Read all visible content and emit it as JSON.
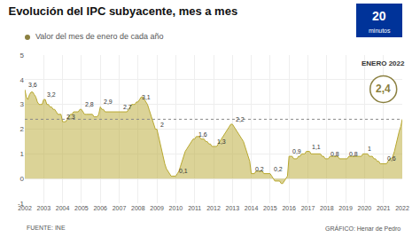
{
  "chart_data": {
    "type": "area",
    "title": "Evolución del IPC subyacente, mes a mes",
    "subtitle": "Valor del mes de enero de cada año",
    "source": "FUENTE: INE",
    "credit": "GRÁFICO: Henar de Pedro",
    "logo": [
      "20",
      "minutos"
    ],
    "color": "#b8a830",
    "categories": [
      "2002",
      null,
      null,
      null,
      null,
      null,
      null,
      null,
      null,
      null,
      null,
      null,
      "2003",
      null,
      null,
      null,
      null,
      null,
      null,
      null,
      null,
      null,
      null,
      null,
      "2004",
      null,
      null,
      null,
      null,
      null,
      null,
      null,
      null,
      null,
      null,
      null,
      "2005",
      null,
      null,
      null,
      null,
      null,
      null,
      null,
      null,
      null,
      null,
      null,
      "2006",
      null,
      null,
      null,
      null,
      null,
      null,
      null,
      null,
      null,
      null,
      null,
      "2007",
      null,
      null,
      null,
      null,
      null,
      null,
      null,
      null,
      null,
      null,
      null,
      "2008",
      null,
      null,
      null,
      null,
      null,
      null,
      null,
      null,
      null,
      null,
      null,
      "2009",
      null,
      null,
      null,
      null,
      null,
      null,
      null,
      null,
      null,
      null,
      null,
      "2010",
      null,
      null,
      null,
      null,
      null,
      null,
      null,
      null,
      null,
      null,
      null,
      "2011",
      null,
      null,
      null,
      null,
      null,
      null,
      null,
      null,
      null,
      null,
      null,
      "2012",
      null,
      null,
      null,
      null,
      null,
      null,
      null,
      null,
      null,
      null,
      null,
      "2013",
      null,
      null,
      null,
      null,
      null,
      null,
      null,
      null,
      null,
      null,
      null,
      "2014",
      null,
      null,
      null,
      null,
      null,
      null,
      null,
      null,
      null,
      null,
      null,
      "2015",
      null,
      null,
      null,
      null,
      null,
      null,
      null,
      null,
      null,
      null,
      null,
      "2016",
      null,
      null,
      null,
      null,
      null,
      null,
      null,
      null,
      null,
      null,
      null,
      "2017",
      null,
      null,
      null,
      null,
      null,
      null,
      null,
      null,
      null,
      null,
      null,
      "2018",
      null,
      null,
      null,
      null,
      null,
      null,
      null,
      null,
      null,
      null,
      null,
      "2019",
      null,
      null,
      null,
      null,
      null,
      null,
      null,
      null,
      null,
      null,
      null,
      "2020",
      null,
      null,
      null,
      null,
      null,
      null,
      null,
      null,
      null,
      null,
      null,
      "2021",
      null,
      null,
      null,
      null,
      null,
      null,
      null,
      null,
      null,
      null,
      null,
      "2022"
    ],
    "values": [
      3.6,
      3.3,
      3.2,
      3.4,
      3.5,
      3.5,
      3.4,
      3.3,
      3.1,
      3.0,
      3.0,
      3.0,
      3.2,
      3.2,
      3.0,
      3.0,
      2.9,
      2.9,
      2.8,
      2.8,
      2.7,
      2.6,
      2.6,
      2.6,
      2.3,
      2.3,
      2.3,
      2.4,
      2.5,
      2.6,
      2.6,
      2.7,
      2.7,
      2.7,
      2.7,
      2.8,
      2.8,
      2.7,
      2.6,
      2.6,
      2.6,
      2.6,
      2.6,
      2.6,
      2.5,
      2.5,
      2.5,
      2.6,
      2.9,
      2.8,
      2.8,
      2.7,
      2.7,
      2.7,
      2.7,
      2.7,
      2.7,
      2.7,
      2.7,
      2.7,
      2.7,
      2.7,
      2.7,
      2.7,
      2.7,
      2.7,
      2.8,
      2.9,
      3.0,
      3.0,
      3.0,
      3.1,
      3.1,
      3.2,
      3.3,
      3.3,
      3.2,
      3.1,
      3.0,
      2.8,
      2.6,
      2.4,
      2.2,
      2.0,
      2.0,
      1.7,
      1.4,
      1.1,
      0.8,
      0.6,
      0.4,
      0.3,
      0.2,
      0.1,
      0.1,
      0.1,
      0.1,
      0.2,
      0.3,
      0.5,
      0.7,
      0.9,
      1.1,
      1.2,
      1.3,
      1.4,
      1.5,
      1.6,
      1.6,
      1.7,
      1.7,
      1.7,
      1.6,
      1.6,
      1.6,
      1.5,
      1.5,
      1.4,
      1.4,
      1.3,
      1.3,
      1.3,
      1.3,
      1.4,
      1.5,
      1.6,
      1.7,
      1.8,
      1.9,
      2.0,
      2.1,
      2.2,
      2.2,
      2.1,
      2.0,
      1.9,
      1.8,
      1.7,
      1.6,
      1.5,
      1.3,
      1.1,
      0.9,
      0.7,
      0.2,
      0.2,
      0.2,
      0.3,
      0.3,
      0.3,
      0.3,
      0.3,
      0.2,
      0.2,
      0.2,
      0.2,
      0.2,
      0.1,
      0.0,
      -0.1,
      -0.1,
      -0.1,
      -0.1,
      -0.2,
      -0.2,
      -0.1,
      0.0,
      0.1,
      0.9,
      0.9,
      0.9,
      0.8,
      0.8,
      0.8,
      0.9,
      0.9,
      1.0,
      1.0,
      1.0,
      1.1,
      1.1,
      1.1,
      1.0,
      1.0,
      1.0,
      1.0,
      1.0,
      1.0,
      1.0,
      0.9,
      0.9,
      0.8,
      0.8,
      0.8,
      0.9,
      0.9,
      0.9,
      0.9,
      0.9,
      0.9,
      0.8,
      0.8,
      0.8,
      0.8,
      0.8,
      0.8,
      0.9,
      0.9,
      0.9,
      0.9,
      0.9,
      0.9,
      0.9,
      0.9,
      0.9,
      1.0,
      1.0,
      1.0,
      1.0,
      0.9,
      0.9,
      0.9,
      0.8,
      0.8,
      0.7,
      0.7,
      0.6,
      0.6,
      0.6,
      0.6,
      0.6,
      0.7,
      0.8,
      0.8,
      0.9,
      1.1,
      1.4,
      1.6,
      1.9,
      2.1,
      2.4
    ],
    "ylim": [
      -1,
      5
    ],
    "yticks": [
      -1,
      0,
      1,
      2,
      3,
      4,
      5
    ],
    "grid": true,
    "annotations": [
      {
        "category": "2002",
        "value": 3.6,
        "label": "3,6"
      },
      {
        "category": "2003",
        "value": 3.2,
        "label": "3,2"
      },
      {
        "category": "2004",
        "value": 2.3,
        "label": "2,3"
      },
      {
        "category": "2005",
        "value": 2.8,
        "label": "2,8"
      },
      {
        "category": "2006",
        "value": 2.9,
        "label": "2,9"
      },
      {
        "category": "2007",
        "value": 2.7,
        "label": "2,7"
      },
      {
        "category": "2008",
        "value": 3.1,
        "label": "3,1"
      },
      {
        "category": "2009",
        "value": 2.0,
        "label": "2"
      },
      {
        "category": "2010",
        "value": 0.1,
        "label": "0,1"
      },
      {
        "category": "2011",
        "value": 1.6,
        "label": "1,6"
      },
      {
        "category": "2012",
        "value": 1.3,
        "label": "1,3"
      },
      {
        "category": "2013",
        "value": 2.2,
        "label": "2,2"
      },
      {
        "category": "2014",
        "value": 0.2,
        "label": "0,2"
      },
      {
        "category": "2015",
        "value": 0.2,
        "label": "0,2"
      },
      {
        "category": "2016",
        "value": 0.9,
        "label": "0,9"
      },
      {
        "category": "2017",
        "value": 1.1,
        "label": "1,1"
      },
      {
        "category": "2018",
        "value": 0.8,
        "label": "0,8"
      },
      {
        "category": "2019",
        "value": 0.8,
        "label": "0,8"
      },
      {
        "category": "2020",
        "value": 1.0,
        "label": "1"
      },
      {
        "category": "2021",
        "value": 0.6,
        "label": "0,6"
      }
    ],
    "callout": {
      "title": "ENERO 2022",
      "label": "2,4",
      "value": 2.4,
      "color": "#8b8040"
    }
  }
}
